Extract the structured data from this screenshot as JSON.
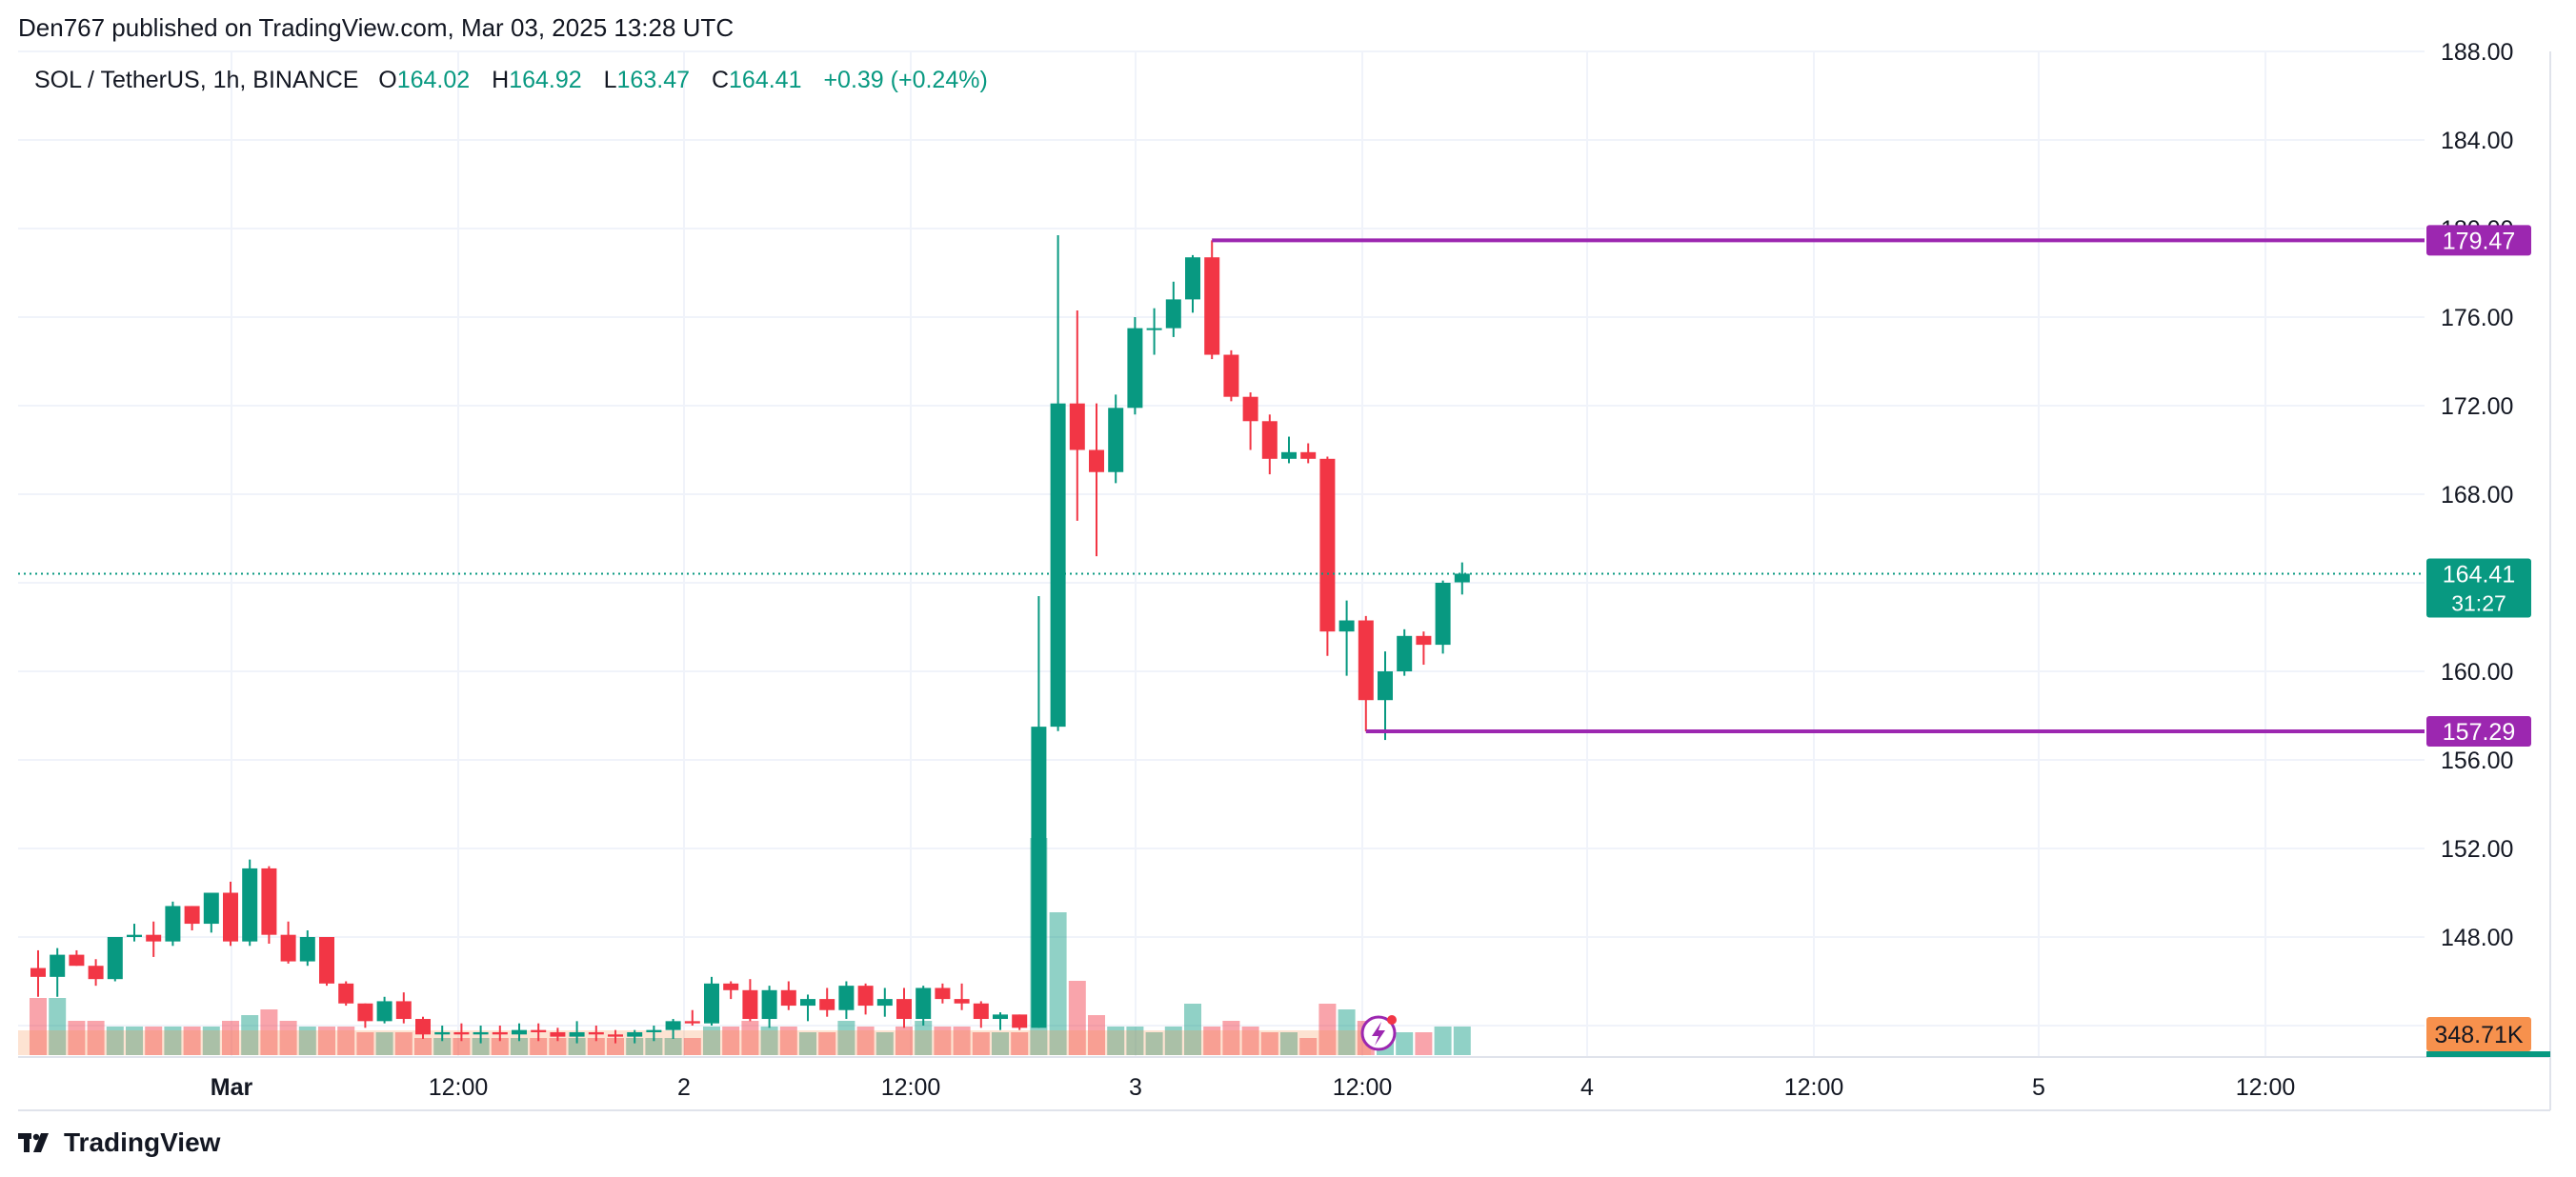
{
  "caption": "Den767 published on TradingView.com, Mar 03, 2025 13:28 UTC",
  "legend": {
    "symbol": "SOL / TetherUS, 1h, BINANCE",
    "open_label": "O",
    "open": "164.02",
    "high_label": "H",
    "high": "164.92",
    "low_label": "L",
    "low": "163.47",
    "close_label": "C",
    "close": "164.41",
    "change": "+0.39 (+0.24%)"
  },
  "footer": {
    "brand": "TradingView"
  },
  "colors": {
    "up": "#089981",
    "down": "#f23645",
    "level": "#9c27b0",
    "grid": "#f0f3fa",
    "last": "#089981",
    "volume_badge": "#f7914d"
  },
  "chart_data": {
    "type": "candlestick",
    "y_axis": {
      "ticks": [
        "188.00",
        "184.00",
        "180.00",
        "176.00",
        "172.00",
        "168.00",
        "164.00",
        "160.00",
        "156.00",
        "152.00",
        "148.00",
        "144.00"
      ],
      "ylim": [
        143.2,
        188.0
      ]
    },
    "x_axis": {
      "ticks": [
        "Mar",
        "12:00",
        "2",
        "12:00",
        "3",
        "12:00",
        "4",
        "12:00",
        "5",
        "12:00"
      ]
    },
    "price_labels": {
      "resistance": "179.47",
      "support": "157.29",
      "last": "164.41",
      "countdown": "31:27",
      "volume": "348.71K"
    },
    "levels": [
      {
        "name": "resistance",
        "value": 179.47
      },
      {
        "name": "support",
        "value": 157.29
      }
    ],
    "last_price": 164.41,
    "candles": [
      [
        146.6,
        147.4,
        145.3,
        146.2,
        1.0
      ],
      [
        146.2,
        147.5,
        145.3,
        147.2,
        1.0
      ],
      [
        147.2,
        147.4,
        146.7,
        146.7,
        0.6
      ],
      [
        146.7,
        147.0,
        145.8,
        146.1,
        0.6
      ],
      [
        146.1,
        148.0,
        146.0,
        148.0,
        0.5
      ],
      [
        148.0,
        148.6,
        147.8,
        148.1,
        0.5
      ],
      [
        148.1,
        148.7,
        147.1,
        147.8,
        0.5
      ],
      [
        147.8,
        149.6,
        147.6,
        149.4,
        0.5
      ],
      [
        149.4,
        149.4,
        148.3,
        148.6,
        0.5
      ],
      [
        148.6,
        150.0,
        148.2,
        150.0,
        0.5
      ],
      [
        150.0,
        150.5,
        147.6,
        147.8,
        0.6
      ],
      [
        147.8,
        151.5,
        147.6,
        151.1,
        0.7
      ],
      [
        151.1,
        151.2,
        147.7,
        148.1,
        0.8
      ],
      [
        148.1,
        148.7,
        146.8,
        146.9,
        0.6
      ],
      [
        146.9,
        148.3,
        146.7,
        148.0,
        0.5
      ],
      [
        148.0,
        148.0,
        145.8,
        145.9,
        0.5
      ],
      [
        145.9,
        146.0,
        144.9,
        145.0,
        0.5
      ],
      [
        145.0,
        145.0,
        143.9,
        144.2,
        0.4
      ],
      [
        144.2,
        145.3,
        144.1,
        145.1,
        0.4
      ],
      [
        145.1,
        145.5,
        144.1,
        144.3,
        0.4
      ],
      [
        144.3,
        144.4,
        143.4,
        143.6,
        0.3
      ],
      [
        143.6,
        144.0,
        143.3,
        143.7,
        0.3
      ],
      [
        143.7,
        144.1,
        143.3,
        143.6,
        0.3
      ],
      [
        143.6,
        144.0,
        143.2,
        143.7,
        0.3
      ],
      [
        143.7,
        144.0,
        143.3,
        143.6,
        0.3
      ],
      [
        143.6,
        144.1,
        143.3,
        143.8,
        0.3
      ],
      [
        143.8,
        144.1,
        143.3,
        143.7,
        0.3
      ],
      [
        143.7,
        143.9,
        143.3,
        143.5,
        0.3
      ],
      [
        143.5,
        144.2,
        143.2,
        143.7,
        0.3
      ],
      [
        143.7,
        144.0,
        143.3,
        143.6,
        0.3
      ],
      [
        143.6,
        143.8,
        143.2,
        143.5,
        0.3
      ],
      [
        143.5,
        143.8,
        143.2,
        143.7,
        0.3
      ],
      [
        143.7,
        144.0,
        143.3,
        143.8,
        0.3
      ],
      [
        143.8,
        144.3,
        143.4,
        144.2,
        0.3
      ],
      [
        144.2,
        144.7,
        144.0,
        144.1,
        0.3
      ],
      [
        144.1,
        146.2,
        144.0,
        145.9,
        0.5
      ],
      [
        145.9,
        146.0,
        145.2,
        145.6,
        0.5
      ],
      [
        145.6,
        146.1,
        144.2,
        144.3,
        0.6
      ],
      [
        144.3,
        145.8,
        143.9,
        145.6,
        0.5
      ],
      [
        145.6,
        146.0,
        144.7,
        144.9,
        0.5
      ],
      [
        144.9,
        145.4,
        144.2,
        145.2,
        0.4
      ],
      [
        145.2,
        145.7,
        144.4,
        144.7,
        0.4
      ],
      [
        144.7,
        146.0,
        144.3,
        145.8,
        0.6
      ],
      [
        145.8,
        145.9,
        144.5,
        144.9,
        0.5
      ],
      [
        144.9,
        145.7,
        144.4,
        145.2,
        0.4
      ],
      [
        145.2,
        145.7,
        143.9,
        144.3,
        0.5
      ],
      [
        144.3,
        145.8,
        144.0,
        145.7,
        0.6
      ],
      [
        145.7,
        145.9,
        145.0,
        145.2,
        0.5
      ],
      [
        145.2,
        145.9,
        144.7,
        145.0,
        0.5
      ],
      [
        145.0,
        145.1,
        143.9,
        144.3,
        0.4
      ],
      [
        144.3,
        144.6,
        143.8,
        144.5,
        0.4
      ],
      [
        144.5,
        144.5,
        143.8,
        143.9,
        0.4
      ],
      [
        143.9,
        163.4,
        143.9,
        157.5,
        3.8
      ],
      [
        157.5,
        179.7,
        157.3,
        172.1,
        2.5
      ],
      [
        172.1,
        176.3,
        166.8,
        170.0,
        1.3
      ],
      [
        170.0,
        172.1,
        165.2,
        169.0,
        0.7
      ],
      [
        169.0,
        172.5,
        168.5,
        171.9,
        0.5
      ],
      [
        171.9,
        176.0,
        171.6,
        175.5,
        0.5
      ],
      [
        175.5,
        176.4,
        174.3,
        175.5,
        0.4
      ],
      [
        175.5,
        177.6,
        175.1,
        176.8,
        0.5
      ],
      [
        176.8,
        178.8,
        176.2,
        178.7,
        0.9
      ],
      [
        178.7,
        179.47,
        174.1,
        174.3,
        0.5
      ],
      [
        174.3,
        174.5,
        172.2,
        172.4,
        0.6
      ],
      [
        172.4,
        172.6,
        170.0,
        171.3,
        0.5
      ],
      [
        171.3,
        171.6,
        168.9,
        169.6,
        0.4
      ],
      [
        169.6,
        170.6,
        169.4,
        169.9,
        0.4
      ],
      [
        169.9,
        170.3,
        169.4,
        169.6,
        0.3
      ],
      [
        169.6,
        169.7,
        160.7,
        161.8,
        0.9
      ],
      [
        161.8,
        163.2,
        159.8,
        162.3,
        0.8
      ],
      [
        162.3,
        162.5,
        157.29,
        158.7,
        0.6
      ],
      [
        158.7,
        160.9,
        156.9,
        160.0,
        0.5
      ],
      [
        160.0,
        161.9,
        159.8,
        161.6,
        0.4
      ],
      [
        161.6,
        161.8,
        160.3,
        161.2,
        0.4
      ],
      [
        161.2,
        164.1,
        160.8,
        164.0,
        0.5
      ],
      [
        164.02,
        164.92,
        163.47,
        164.41,
        0.5
      ]
    ]
  }
}
